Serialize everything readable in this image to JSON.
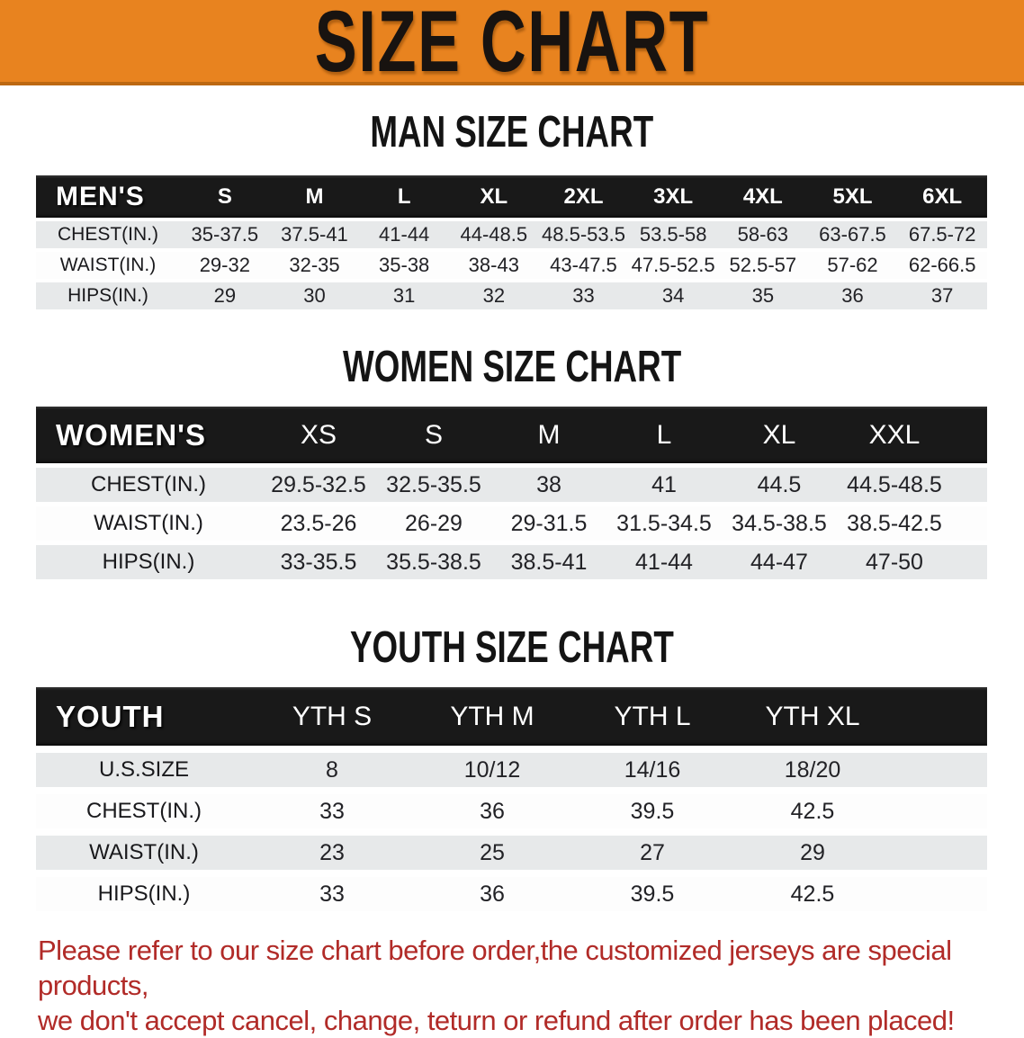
{
  "banner": {
    "title": "SIZE CHART"
  },
  "colors": {
    "banner_bg": "#E8831F",
    "banner_border": "#BC6812",
    "header_bar": "#191919",
    "row_gray": "#E7E9EA",
    "disclaimer": "#B12B28"
  },
  "men": {
    "heading": "MAN SIZE CHART",
    "corner": "MEN'S",
    "columns": [
      "S",
      "M",
      "L",
      "XL",
      "2XL",
      "3XL",
      "4XL",
      "5XL",
      "6XL"
    ],
    "rows": [
      {
        "label": "CHEST(IN.)",
        "values": [
          "35-37.5",
          "37.5-41",
          "41-44",
          "44-48.5",
          "48.5-53.5",
          "53.5-58",
          "58-63",
          "63-67.5",
          "67.5-72"
        ]
      },
      {
        "label": "WAIST(IN.)",
        "values": [
          "29-32",
          "32-35",
          "35-38",
          "38-43",
          "43-47.5",
          "47.5-52.5",
          "52.5-57",
          "57-62",
          "62-66.5"
        ]
      },
      {
        "label": "HIPS(IN.)",
        "values": [
          "29",
          "30",
          "31",
          "32",
          "33",
          "34",
          "35",
          "36",
          "37"
        ]
      }
    ]
  },
  "women": {
    "heading": "WOMEN SIZE CHART",
    "corner": "WOMEN'S",
    "columns": [
      "XS",
      "S",
      "M",
      "L",
      "XL",
      "XXL"
    ],
    "rows": [
      {
        "label": "CHEST(IN.)",
        "values": [
          "29.5-32.5",
          "32.5-35.5",
          "38",
          "41",
          "44.5",
          "44.5-48.5"
        ]
      },
      {
        "label": "WAIST(IN.)",
        "values": [
          "23.5-26",
          "26-29",
          "29-31.5",
          "31.5-34.5",
          "34.5-38.5",
          "38.5-42.5"
        ]
      },
      {
        "label": "HIPS(IN.)",
        "values": [
          "33-35.5",
          "35.5-38.5",
          "38.5-41",
          "41-44",
          "44-47",
          "47-50"
        ]
      }
    ]
  },
  "youth": {
    "heading": "YOUTH SIZE CHART",
    "corner": "YOUTH",
    "columns": [
      "YTH S",
      "YTH M",
      "YTH L",
      "YTH XL"
    ],
    "rows": [
      {
        "label": "U.S.SIZE",
        "values": [
          "8",
          "10/12",
          "14/16",
          "18/20"
        ]
      },
      {
        "label": "CHEST(IN.)",
        "values": [
          "33",
          "36",
          "39.5",
          "42.5"
        ]
      },
      {
        "label": "WAIST(IN.)",
        "values": [
          "23",
          "25",
          "27",
          "29"
        ]
      },
      {
        "label": "HIPS(IN.)",
        "values": [
          "33",
          "36",
          "39.5",
          "42.5"
        ]
      }
    ]
  },
  "disclaimer": {
    "line1": "Please refer to our size chart before order,the customized jerseys are special products,",
    "line2": "we don't accept cancel, change, teturn or refund after order has been placed!"
  }
}
